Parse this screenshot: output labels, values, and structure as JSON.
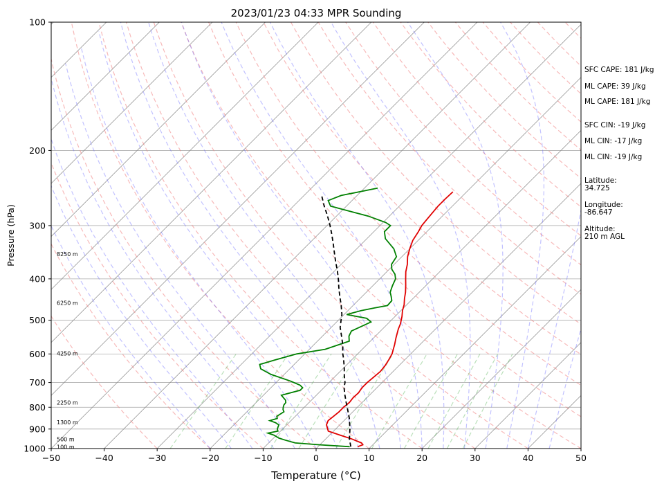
{
  "chart_data": {
    "type": "line",
    "title": "2023/01/23 04:33 MPR Sounding",
    "xlabel": "Temperature (°C)",
    "ylabel": "Pressure (hPa)",
    "xlim": [
      -50,
      50
    ],
    "ylim": [
      1000,
      100
    ],
    "y_scale": "log",
    "grid": true,
    "x_ticks": [
      -50,
      -40,
      -30,
      -20,
      -10,
      0,
      10,
      20,
      30,
      40,
      50
    ],
    "y_ticks": [
      1000,
      900,
      800,
      700,
      600,
      500,
      400,
      300,
      200,
      100
    ],
    "height_labels": [
      {
        "p": 350,
        "label": "8250 m"
      },
      {
        "p": 455,
        "label": "6250 m"
      },
      {
        "p": 598,
        "label": "4250 m"
      },
      {
        "p": 780,
        "label": "2250 m"
      },
      {
        "p": 868,
        "label": "1300 m"
      },
      {
        "p": 950,
        "label": "500 m"
      },
      {
        "p": 990,
        "label": "100 m"
      }
    ],
    "series": [
      {
        "color": "#e00000",
        "points": [
          [
            7.5,
            990
          ],
          [
            8.1,
            980
          ],
          [
            7.5,
            970
          ],
          [
            5.0,
            950
          ],
          [
            2.0,
            930
          ],
          [
            -1.0,
            910
          ],
          [
            -2.5,
            880
          ],
          [
            -3.0,
            860
          ],
          [
            -2.8,
            840
          ],
          [
            -2.6,
            820
          ],
          [
            -2.6,
            800
          ],
          [
            -2.4,
            780
          ],
          [
            -2.6,
            760
          ],
          [
            -2.5,
            740
          ],
          [
            -2.8,
            720
          ],
          [
            -2.8,
            700
          ],
          [
            -2.6,
            680
          ],
          [
            -2.4,
            660
          ],
          [
            -2.6,
            640
          ],
          [
            -3.0,
            620
          ],
          [
            -3.5,
            600
          ],
          [
            -4.8,
            570
          ],
          [
            -5.8,
            550
          ],
          [
            -7.0,
            525
          ],
          [
            -7.6,
            510
          ],
          [
            -8.7,
            490
          ],
          [
            -9.7,
            475
          ],
          [
            -10.5,
            460
          ],
          [
            -11.6,
            445
          ],
          [
            -12.6,
            430
          ],
          [
            -13.8,
            415
          ],
          [
            -15.1,
            400
          ],
          [
            -16.4,
            385
          ],
          [
            -17.5,
            370
          ],
          [
            -18.9,
            355
          ],
          [
            -20.0,
            340
          ],
          [
            -21.0,
            325
          ],
          [
            -21.6,
            310
          ],
          [
            -22.1,
            300
          ],
          [
            -22.3,
            290
          ],
          [
            -22.5,
            280
          ],
          [
            -22.7,
            270
          ],
          [
            -22.7,
            260
          ],
          [
            -22.6,
            250
          ]
        ]
      },
      {
        "color": "#008000",
        "points": [
          [
            6.0,
            990
          ],
          [
            0.0,
            980
          ],
          [
            -5.0,
            970
          ],
          [
            -7.5,
            955
          ],
          [
            -9.0,
            945
          ],
          [
            -10.5,
            930
          ],
          [
            -12.0,
            920
          ],
          [
            -10.5,
            910
          ],
          [
            -11.0,
            900
          ],
          [
            -11.5,
            880
          ],
          [
            -12.5,
            870
          ],
          [
            -14.0,
            860
          ],
          [
            -13.0,
            850
          ],
          [
            -13.5,
            840
          ],
          [
            -13.0,
            820
          ],
          [
            -13.6,
            810
          ],
          [
            -14.0,
            800
          ],
          [
            -14.3,
            790
          ],
          [
            -14.4,
            780
          ],
          [
            -14.9,
            770
          ],
          [
            -16.6,
            750
          ],
          [
            -14.0,
            730
          ],
          [
            -14.0,
            720
          ],
          [
            -15.0,
            710
          ],
          [
            -17.5,
            695
          ],
          [
            -22.5,
            670
          ],
          [
            -25.5,
            650
          ],
          [
            -26.5,
            635
          ],
          [
            -24.5,
            620
          ],
          [
            -21.5,
            600
          ],
          [
            -17.0,
            585
          ],
          [
            -14.0,
            560
          ],
          [
            -15.0,
            545
          ],
          [
            -15.5,
            530
          ],
          [
            -13.5,
            505
          ],
          [
            -15.0,
            495
          ],
          [
            -19.5,
            485
          ],
          [
            -17.5,
            475
          ],
          [
            -15.5,
            468
          ],
          [
            -13.5,
            462
          ],
          [
            -13.6,
            450
          ],
          [
            -14.5,
            440
          ],
          [
            -15.5,
            430
          ],
          [
            -16.3,
            415
          ],
          [
            -17.0,
            400
          ],
          [
            -18.0,
            390
          ],
          [
            -19.5,
            380
          ],
          [
            -20.5,
            370
          ],
          [
            -21.0,
            355
          ],
          [
            -23.0,
            340
          ],
          [
            -26.5,
            322
          ],
          [
            -28.0,
            310
          ],
          [
            -28.0,
            300
          ],
          [
            -29.5,
            295
          ],
          [
            -34.0,
            285
          ],
          [
            -40.0,
            275
          ],
          [
            -43.0,
            270
          ],
          [
            -44.5,
            262
          ],
          [
            -43.0,
            255
          ],
          [
            -37.5,
            245
          ]
        ]
      },
      {
        "color": "#000000",
        "dashed": true,
        "points": [
          [
            6.2,
            990
          ],
          [
            4.5,
            950
          ],
          [
            2.7,
            900
          ],
          [
            0.6,
            850
          ],
          [
            -1.4,
            810
          ],
          [
            -3.0,
            780
          ],
          [
            -4.6,
            750
          ],
          [
            -6.2,
            720
          ],
          [
            -7.0,
            700
          ],
          [
            -8.4,
            675
          ],
          [
            -10.0,
            645
          ],
          [
            -11.8,
            615
          ],
          [
            -12.8,
            600
          ],
          [
            -14.6,
            570
          ],
          [
            -16.4,
            545
          ],
          [
            -18.3,
            520
          ],
          [
            -19.5,
            500
          ],
          [
            -20.4,
            485
          ],
          [
            -22.4,
            460
          ],
          [
            -24.2,
            440
          ],
          [
            -26.0,
            420
          ],
          [
            -27.8,
            400
          ],
          [
            -29.6,
            382
          ],
          [
            -31.5,
            365
          ],
          [
            -33.4,
            348
          ],
          [
            -35.5,
            330
          ],
          [
            -37.5,
            314
          ],
          [
            -39.7,
            298
          ],
          [
            -42.0,
            283
          ],
          [
            -44.2,
            270
          ],
          [
            -46.5,
            256
          ]
        ]
      }
    ]
  },
  "side_text": {
    "sfc_cape": "SFC CAPE: 181 J/kg",
    "ml_cape_1": "ML CAPE: 39 J/kg",
    "ml_cape_2": "ML CAPE: 181 J/kg",
    "sfc_cin": "SFC CIN: -19 J/kg",
    "ml_cin_1": "ML CIN: -17 J/kg",
    "ml_cin_2": "ML CIN: -19 J/kg",
    "latitude_label": "Latitude:",
    "latitude_value": "34.725",
    "longitude_label": "Longitude:",
    "longitude_value": "-86.647",
    "altitude_label": "Altitude:",
    "altitude_value": "210 m AGL"
  },
  "colors": {
    "dry_adiabat": "#f08080",
    "moist_adiabat": "#6666ff",
    "mixing_ratio": "#66bb66",
    "isotherm": "#888888"
  }
}
